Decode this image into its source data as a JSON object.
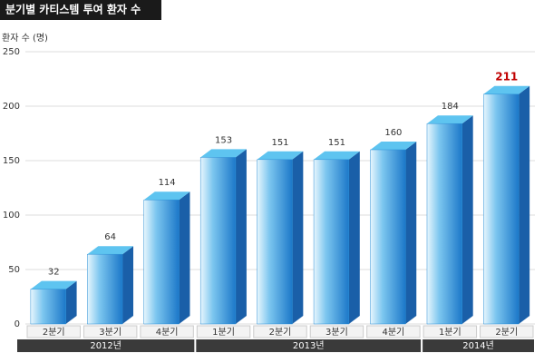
{
  "chart_data": {
    "type": "bar",
    "title": "분기별 카티스템 투여 환자 수",
    "y_label": "환자 수 (명)",
    "categories": [
      "2분기",
      "3분기",
      "4분기",
      "1분기",
      "2분기",
      "3분기",
      "4분기",
      "1분기",
      "2분기"
    ],
    "groups": [
      {
        "name": "2012년",
        "span": 3
      },
      {
        "name": "2013년",
        "span": 4
      },
      {
        "name": "2014년",
        "span": 2
      }
    ],
    "values": [
      32,
      64,
      114,
      153,
      151,
      151,
      160,
      184,
      211
    ],
    "label_colors": [
      "#333333",
      "#333333",
      "#333333",
      "#333333",
      "#333333",
      "#333333",
      "#333333",
      "#333333",
      "#c00000"
    ],
    "color": "#2a8fd6",
    "ylim": [
      0,
      250
    ],
    "yticks": [
      0,
      50,
      100,
      150,
      200,
      250
    ],
    "grid": true
  }
}
